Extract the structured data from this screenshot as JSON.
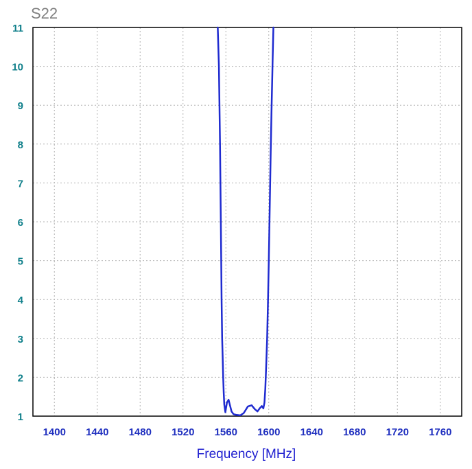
{
  "chart_data": {
    "type": "line",
    "title": "S22",
    "xlabel": "Frequency [MHz]",
    "ylabel": "",
    "xlim": [
      1380,
      1780
    ],
    "ylim": [
      1,
      11
    ],
    "x_ticks": [
      1400,
      1440,
      1480,
      1520,
      1560,
      1600,
      1640,
      1680,
      1720,
      1760
    ],
    "y_ticks": [
      1,
      2,
      3,
      4,
      5,
      6,
      7,
      8,
      9,
      10,
      11
    ],
    "grid": true,
    "line_color": "#1f2bd0",
    "series": [
      {
        "name": "",
        "x": [
          1552.4,
          1553.5,
          1554.5,
          1555.3,
          1556.0,
          1556.5,
          1557.0,
          1557.5,
          1558.0,
          1558.5,
          1559.5,
          1561.0,
          1562.5,
          1563.8,
          1565.3,
          1567.2,
          1570.0,
          1573.5,
          1576.7,
          1580.5,
          1584.0,
          1587.0,
          1589.5,
          1591.5,
          1593.5,
          1595.0,
          1596.0,
          1596.8,
          1597.5,
          1598.5,
          1599.3,
          1600.0,
          1601.0,
          1601.8,
          1602.5,
          1603.5,
          1604.3
        ],
        "y": [
          11,
          10,
          8,
          6,
          4,
          3,
          2.5,
          2,
          1.6,
          1.3,
          1.1,
          1.35,
          1.42,
          1.28,
          1.12,
          1.05,
          1.03,
          1.02,
          1.08,
          1.25,
          1.28,
          1.18,
          1.12,
          1.2,
          1.26,
          1.2,
          1.35,
          1.7,
          2.2,
          3,
          4,
          5,
          6.5,
          7.8,
          8.8,
          10,
          11
        ]
      }
    ]
  }
}
